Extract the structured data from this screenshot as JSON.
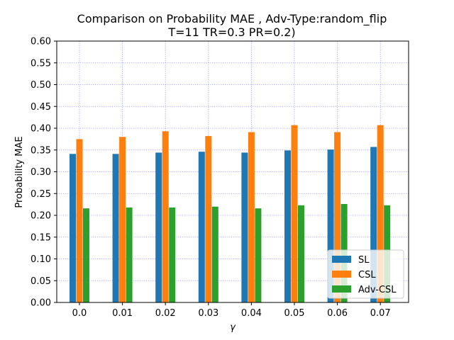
{
  "chart_data": {
    "type": "bar",
    "title_line1": "Comparison on Probability MAE , Adv-Type:random_flip",
    "title_line2": "T=11 TR=0.3 PR=0.2)",
    "xlabel": "γ",
    "ylabel": "Probability MAE",
    "categories": [
      "0.0",
      "0.01",
      "0.02",
      "0.03",
      "0.04",
      "0.05",
      "0.06",
      "0.07"
    ],
    "yticks": [
      "0.00",
      "0.05",
      "0.10",
      "0.15",
      "0.20",
      "0.25",
      "0.30",
      "0.35",
      "0.40",
      "0.45",
      "0.50",
      "0.55",
      "0.60"
    ],
    "ylim": [
      0,
      0.6
    ],
    "grid": true,
    "legend_position": "lower-right",
    "series": [
      {
        "name": "SL",
        "color": "#1f77b4",
        "values": [
          0.341,
          0.341,
          0.344,
          0.346,
          0.344,
          0.349,
          0.351,
          0.357
        ]
      },
      {
        "name": "CSL",
        "color": "#ff7f0e",
        "values": [
          0.375,
          0.38,
          0.393,
          0.382,
          0.391,
          0.407,
          0.391,
          0.407
        ]
      },
      {
        "name": "Adv-CSL",
        "color": "#2ca02c",
        "values": [
          0.216,
          0.218,
          0.218,
          0.22,
          0.216,
          0.223,
          0.226,
          0.223
        ]
      }
    ]
  }
}
